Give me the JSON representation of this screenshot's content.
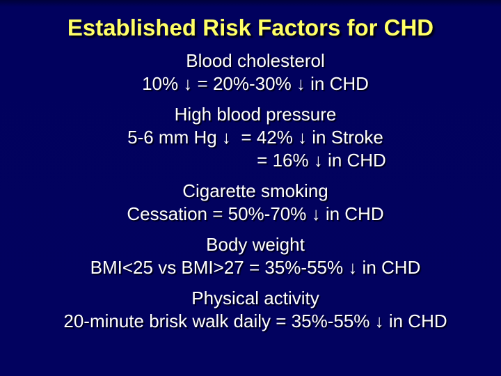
{
  "slide": {
    "title": "Established Risk Factors for CHD",
    "sections": [
      {
        "heading": "Blood cholesterol",
        "lines": [
          "10% ↓ = 20%-30% ↓ in CHD"
        ]
      },
      {
        "heading": "High blood pressure",
        "lines": [
          "5-6 mm Hg ↓  = 42% ↓ in Stroke",
          "= 16% ↓ in CHD"
        ]
      },
      {
        "heading": "Cigarette smoking",
        "lines": [
          "Cessation = 50%-70% ↓ in CHD"
        ]
      },
      {
        "heading": "Body weight",
        "lines": [
          "BMI<25 vs BMI>27 = 35%-55% ↓ in CHD"
        ]
      },
      {
        "heading": "Physical activity",
        "lines": [
          "20-minute brisk walk daily = 35%-55% ↓ in CHD"
        ]
      }
    ],
    "colors": {
      "background": "#01015e",
      "title": "#ffff66",
      "body_text": "#ffffff",
      "shadow": "#00000c"
    }
  }
}
